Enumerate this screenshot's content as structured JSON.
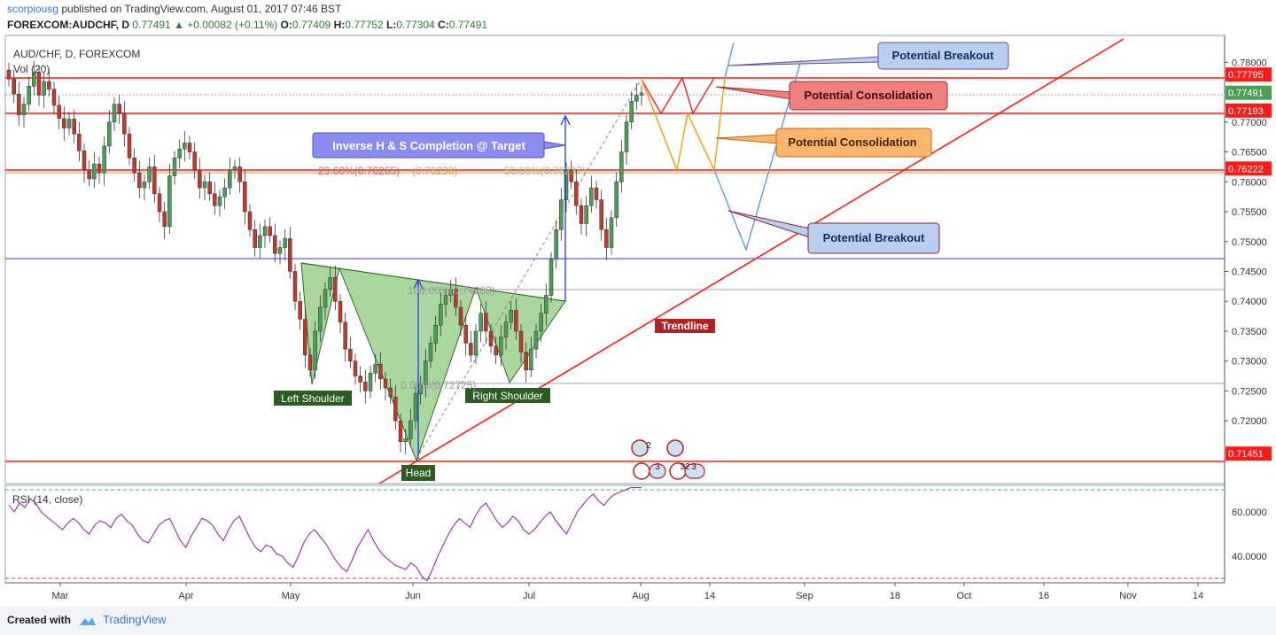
{
  "header": {
    "user": "scorpiousg",
    "published": "published on TradingView.com, August 01, 2017 07:46 BST",
    "symbol": "FOREXCOM:AUDCHF, D",
    "price": "0.77491",
    "change": "▲ +0.00082 (+0.11%)",
    "o_label": "O:",
    "o": "0.77409",
    "h_label": "H:",
    "h": "0.77752",
    "l_label": "L:",
    "l": "0.77304",
    "c_label": "C:",
    "c": "0.77491"
  },
  "panel": {
    "symbol_label": "AUD/CHF, D, FOREXCOM",
    "vol_label": "Vol (20)",
    "rsi_label": "RSI (14, close)"
  },
  "footer": {
    "created_with": "Created with",
    "brand": "TradingView"
  },
  "colors": {
    "up": "#4a9e56",
    "down": "#c0392b",
    "level": "#ff1a1a",
    "neckline_fill": "#8fca7e",
    "rsi": "#9c27b0"
  },
  "chart_data": {
    "type": "candlestick",
    "symbol": "AUD/CHF",
    "ylim": [
      0.7095,
      0.7845
    ],
    "price_ticks": [
      "0.78000",
      "0.77500",
      "0.77000",
      "0.76500",
      "0.76000",
      "0.75500",
      "0.75000",
      "0.74500",
      "0.74000",
      "0.73500",
      "0.73000",
      "0.72500",
      "0.72000"
    ],
    "time_ticks": [
      "Mar",
      "Apr",
      "May",
      "Jun",
      "Jul",
      "Aug",
      "14",
      "Sep",
      "18",
      "Oct",
      "16",
      "Nov",
      "14"
    ],
    "levels": [
      {
        "label": "0.77795",
        "value": 0.77795
      },
      {
        "label": "0.77491",
        "value": 0.77491
      },
      {
        "label": "0.77193",
        "value": 0.77193
      },
      {
        "label": "0.76222",
        "value": 0.76222
      },
      {
        "label": "0.71451",
        "value": 0.71451
      }
    ],
    "fib_labels": [
      "23.60%(0.76265)",
      "(0.76238)",
      "50.00%(0.76237)",
      "100.00%(0.74280)",
      "0.00%(0.72725)"
    ],
    "pattern_labels": [
      "Left Shoulder",
      "Head",
      "Right Shoulder",
      "Trendline"
    ],
    "callouts": [
      "Inverse H & S Completion @  Target",
      "Potential Breakout",
      "Potential Consolidation",
      "Potential Consolidation",
      "Potential Breakout"
    ],
    "event_icons": [
      "2",
      "32",
      "3",
      "3"
    ],
    "closes": [
      0.7772,
      0.7747,
      0.7712,
      0.773,
      0.776,
      0.7783,
      0.7745,
      0.7768,
      0.7755,
      0.7728,
      0.7706,
      0.769,
      0.7705,
      0.768,
      0.7652,
      0.762,
      0.7605,
      0.763,
      0.7615,
      0.766,
      0.77,
      0.773,
      0.7715,
      0.768,
      0.764,
      0.7615,
      0.759,
      0.76,
      0.7625,
      0.758,
      0.755,
      0.7525,
      0.761,
      0.764,
      0.7655,
      0.7665,
      0.765,
      0.762,
      0.759,
      0.76,
      0.758,
      0.756,
      0.7575,
      0.759,
      0.762,
      0.7625,
      0.76,
      0.755,
      0.752,
      0.749,
      0.751,
      0.7525,
      0.751,
      0.748,
      0.749,
      0.7505,
      0.745,
      0.74,
      0.737,
      0.731,
      0.7285,
      0.735,
      0.739,
      0.742,
      0.744,
      0.74,
      0.7365,
      0.732,
      0.73,
      0.7275,
      0.7265,
      0.725,
      0.728,
      0.7295,
      0.727,
      0.7255,
      0.724,
      0.72,
      0.7165,
      0.717,
      0.72,
      0.7245,
      0.726,
      0.73,
      0.733,
      0.736,
      0.7395,
      0.741,
      0.742,
      0.739,
      0.736,
      0.733,
      0.731,
      0.735,
      0.738,
      0.735,
      0.7325,
      0.731,
      0.734,
      0.7365,
      0.7385,
      0.735,
      0.7315,
      0.7285,
      0.732,
      0.735,
      0.738,
      0.741,
      0.747,
      0.752,
      0.757,
      0.762,
      0.76,
      0.756,
      0.753,
      0.756,
      0.759,
      0.757,
      0.752,
      0.749,
      0.754,
      0.76,
      0.765,
      0.77,
      0.7735,
      0.7745,
      0.7749
    ],
    "rsi": {
      "ylim": [
        28,
        72
      ],
      "ticks": [
        "60.0000",
        "40.0000"
      ],
      "values": [
        63,
        60,
        64,
        62,
        66,
        64,
        60,
        58,
        56,
        54,
        52,
        55,
        57,
        55,
        52,
        50,
        54,
        56,
        55,
        53,
        57,
        59,
        56,
        54,
        50,
        47,
        46,
        50,
        54,
        56,
        57,
        52,
        47,
        44,
        49,
        53,
        57,
        56,
        54,
        50,
        47,
        52,
        56,
        58,
        53,
        48,
        44,
        42,
        45,
        44,
        41,
        40,
        37,
        35,
        40,
        46,
        50,
        52,
        49,
        46,
        42,
        38,
        35,
        33,
        38,
        44,
        48,
        52,
        47,
        43,
        40,
        38,
        36,
        35,
        34,
        37,
        35,
        31,
        29,
        34,
        40,
        45,
        50,
        54,
        57,
        55,
        53,
        58,
        62,
        64,
        60,
        56,
        53,
        55,
        58,
        56,
        52,
        50,
        52,
        55,
        58,
        60,
        56,
        53,
        50,
        55,
        60,
        63,
        66,
        68,
        65,
        63,
        66,
        68,
        69,
        70,
        71,
        71,
        71
      ]
    }
  }
}
